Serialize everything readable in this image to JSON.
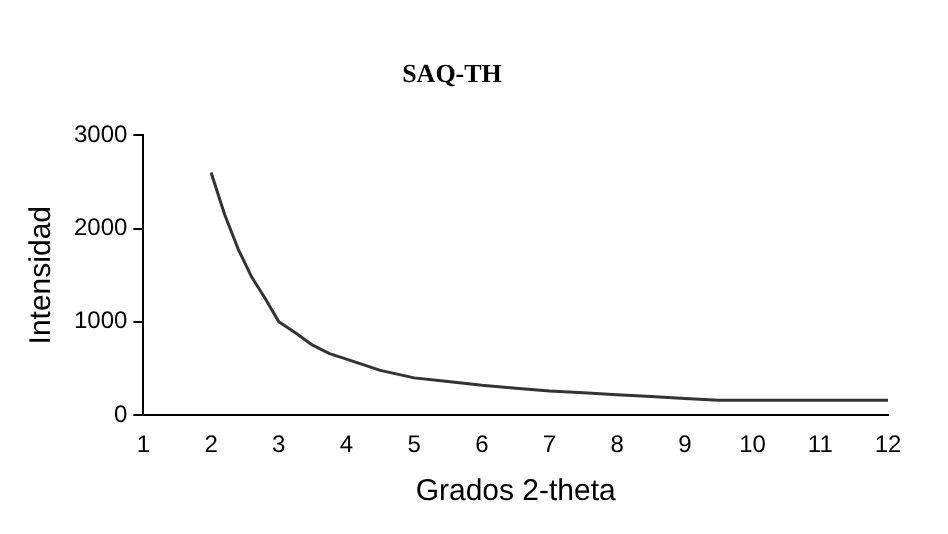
{
  "chart_data": {
    "type": "line",
    "title": "SAQ-TH",
    "xlabel": "Grados 2-theta",
    "ylabel": "Intensidad",
    "x": [
      2,
      2.2,
      2.4,
      2.6,
      2.8,
      3,
      3.25,
      3.5,
      3.75,
      4,
      4.5,
      5,
      5.5,
      6,
      6.5,
      7,
      7.5,
      8,
      8.5,
      9,
      9.5,
      10,
      11,
      12
    ],
    "series": [
      {
        "color": "#333333",
        "values": [
          2600,
          2150,
          1780,
          1480,
          1250,
          1000,
          880,
          750,
          660,
          600,
          480,
          400,
          360,
          320,
          290,
          260,
          240,
          220,
          200,
          180,
          160,
          160,
          160,
          160
        ]
      }
    ],
    "xlim": [
      1,
      12
    ],
    "xticks": [
      1,
      2,
      3,
      4,
      5,
      6,
      7,
      8,
      9,
      10,
      11,
      12
    ],
    "ylim": [
      0,
      3000
    ],
    "yticks": [
      0,
      1000,
      2000,
      3000
    ],
    "grid": false,
    "legend": false,
    "marker": "none",
    "line_style": "solid"
  }
}
